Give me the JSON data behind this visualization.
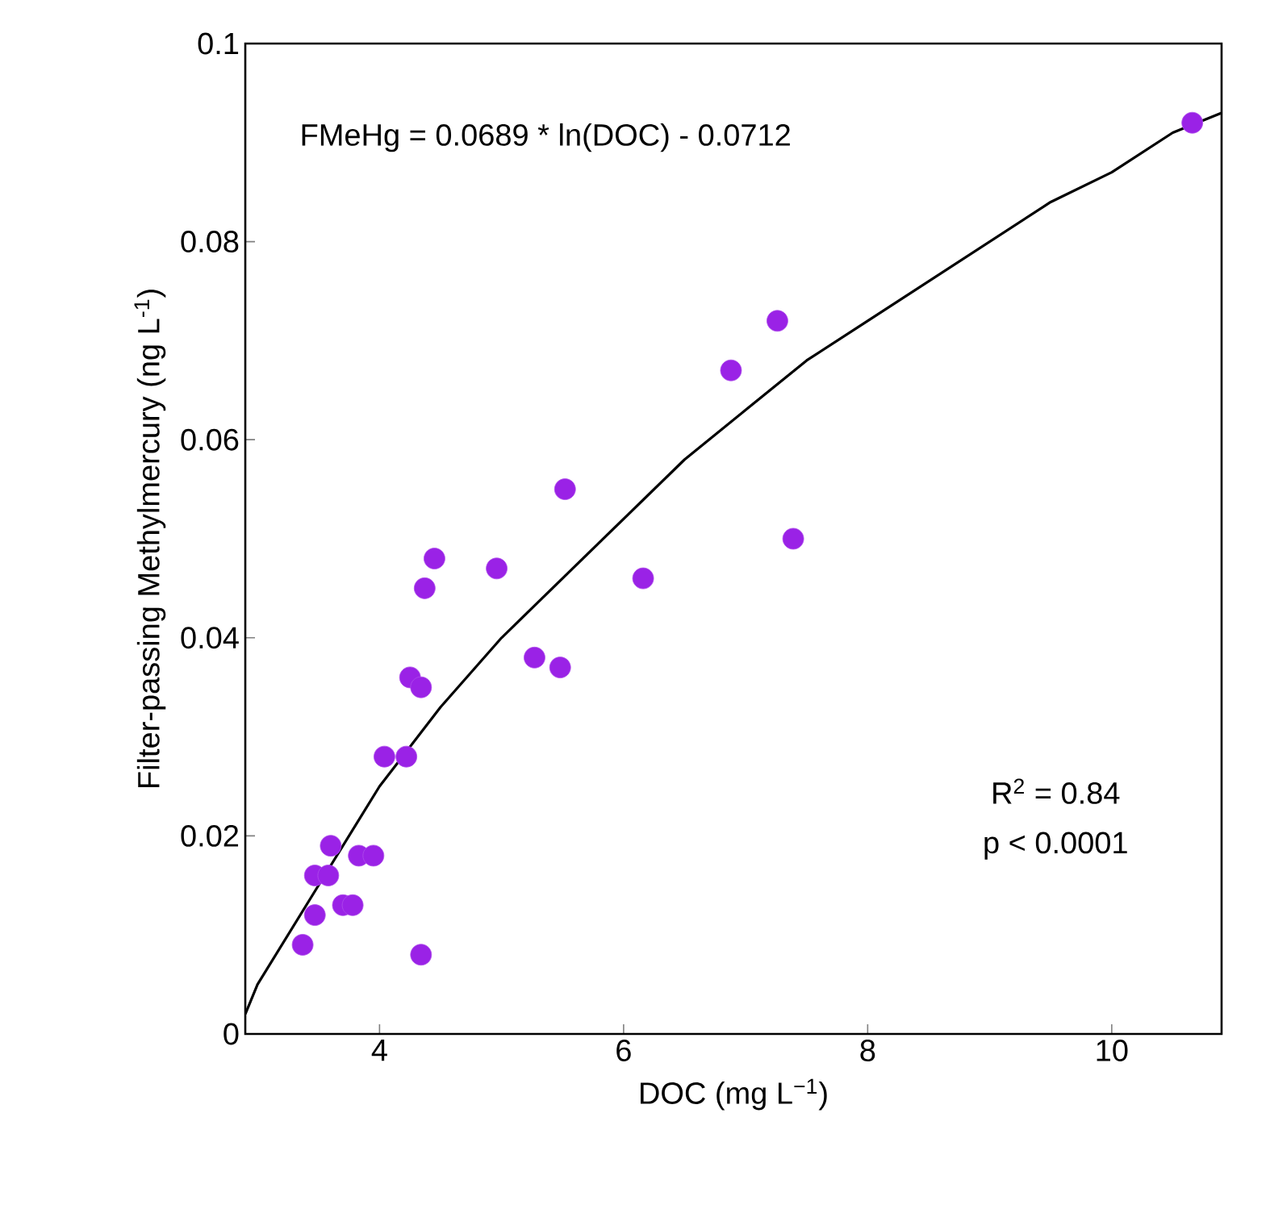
{
  "chart_data": {
    "type": "scatter",
    "xlabel": "DOC   (mg L$^{−1}$)",
    "ylabel": "Filter-passing Methylmercury   (ng L$^{-1}$)",
    "xlim": [
      2.9,
      10.9
    ],
    "ylim": [
      0,
      0.1
    ],
    "xticks": [
      4,
      6,
      8,
      10
    ],
    "yticks": [
      0,
      0.02,
      0.04,
      0.06,
      0.08,
      0.1
    ],
    "annotations": [
      "FMeHg = 0.0689 * ln(DOC) - 0.0712",
      "R$^{2}$ = 0.84",
      "p < 0.0001"
    ],
    "series": [
      {
        "type": "scatter",
        "color": "#9a22e6",
        "marker": "circle",
        "x": [
          5.52,
          4.45,
          4.96,
          4.37,
          6.16,
          5.27,
          5.48,
          4.25,
          4.34,
          4.04,
          4.22,
          3.6,
          3.83,
          3.95,
          3.47,
          3.58,
          3.7,
          3.78,
          3.47,
          3.37,
          4.34,
          7.26,
          6.88,
          7.39,
          10.66
        ],
        "values": [
          0.055,
          0.048,
          0.047,
          0.045,
          0.046,
          0.038,
          0.037,
          0.036,
          0.035,
          0.028,
          0.028,
          0.019,
          0.018,
          0.018,
          0.016,
          0.016,
          0.013,
          0.013,
          0.012,
          0.009,
          0.008,
          0.072,
          0.067,
          0.05,
          0.092
        ]
      },
      {
        "type": "line",
        "color": "#000000",
        "marker": "none",
        "line_style": "solid",
        "x": [
          2.9,
          3,
          3.5,
          4,
          4.5,
          5,
          5.5,
          6,
          6.5,
          7,
          7.5,
          8,
          8.5,
          9,
          9.5,
          10,
          10.5,
          10.9
        ],
        "values": [
          0.002,
          0.005,
          0.015,
          0.025,
          0.033,
          0.04,
          0.046,
          0.052,
          0.058,
          0.063,
          0.068,
          0.072,
          0.076,
          0.08,
          0.084,
          0.087,
          0.091,
          0.093
        ]
      }
    ]
  }
}
